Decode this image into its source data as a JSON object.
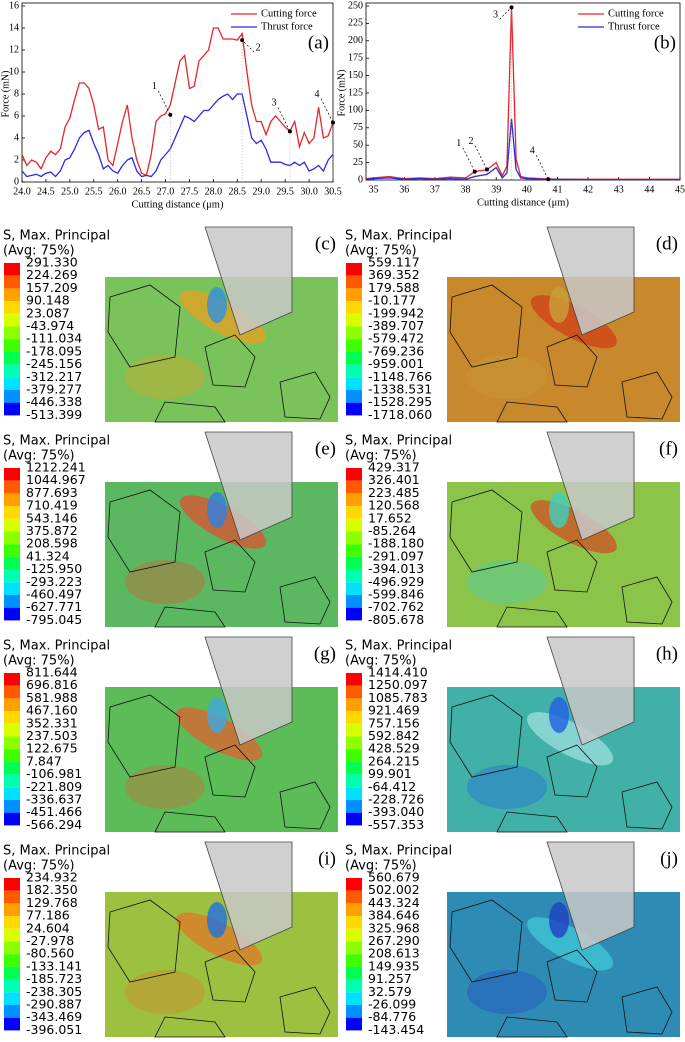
{
  "chart_data": [
    {
      "type": "line",
      "label": "(a)",
      "xlabel": "Cutting distance (μm)",
      "ylabel": "Force (mN)",
      "x": [
        24.0,
        24.1,
        24.2,
        24.3,
        24.4,
        24.5,
        24.6,
        24.7,
        24.8,
        24.9,
        25.0,
        25.1,
        25.2,
        25.3,
        25.4,
        25.5,
        25.6,
        25.7,
        25.8,
        25.9,
        26.0,
        26.1,
        26.2,
        26.3,
        26.4,
        26.5,
        26.6,
        26.7,
        26.8,
        26.9,
        27.0,
        27.1,
        27.2,
        27.3,
        27.4,
        27.5,
        27.6,
        27.7,
        27.8,
        27.9,
        28.0,
        28.1,
        28.2,
        28.3,
        28.4,
        28.5,
        28.6,
        28.7,
        28.8,
        28.9,
        29.0,
        29.1,
        29.2,
        29.3,
        29.4,
        29.5,
        29.6,
        29.7,
        29.8,
        29.9,
        30.0,
        30.1,
        30.2,
        30.3,
        30.4,
        30.5
      ],
      "series": [
        {
          "name": "Cutting force",
          "color": "#e8242a",
          "values": [
            2.5,
            1.5,
            2,
            1.8,
            1.2,
            2.2,
            2.8,
            2.5,
            3,
            5,
            5.8,
            7.5,
            9,
            9,
            8.5,
            7,
            4.8,
            5,
            2,
            1.5,
            3.5,
            5.5,
            7,
            4,
            2,
            0.8,
            0.6,
            2.5,
            5.5,
            6,
            6.2,
            7,
            9,
            11,
            11.5,
            8.5,
            8.7,
            11,
            11.5,
            12,
            14,
            14,
            13,
            13,
            13,
            12.9,
            13.5,
            10,
            7,
            5.5,
            5.5,
            4.3,
            5.5,
            6,
            5.5,
            5,
            4.6,
            5.5,
            3.2,
            4.5,
            3.5,
            4,
            6.8,
            4,
            4.2,
            5.4
          ]
        },
        {
          "name": "Thrust force",
          "color": "#2a2ae0",
          "values": [
            1,
            0.5,
            0.6,
            0.7,
            0.5,
            0.8,
            0.9,
            0.5,
            1,
            2,
            2.2,
            3,
            4,
            4.5,
            4.7,
            3.5,
            2.5,
            1.2,
            1.5,
            1,
            0.8,
            1.5,
            2,
            2.2,
            1,
            0.5,
            0.6,
            0.5,
            1,
            2,
            2.5,
            3,
            4,
            5,
            6,
            5.8,
            5.5,
            6,
            6.5,
            6.5,
            7,
            7.5,
            7.8,
            8,
            7.5,
            8,
            8,
            6,
            4,
            3.5,
            3.8,
            3,
            1.8,
            1.8,
            1.8,
            1.6,
            1.5,
            1.8,
            1.5,
            1.8,
            1,
            1.2,
            1.5,
            1,
            2,
            2.5
          ]
        }
      ],
      "annotations": [
        {
          "label": "1",
          "x": 27.1,
          "y": 6.1
        },
        {
          "label": "2",
          "x": 28.6,
          "y": 12.9
        },
        {
          "label": "3",
          "x": 29.6,
          "y": 4.6
        },
        {
          "label": "4",
          "x": 30.5,
          "y": 5.4
        }
      ],
      "xlim": [
        24.0,
        30.5
      ],
      "xticks": [
        {
          "value": 24.0,
          "label": "24.0"
        },
        24.5,
        {
          "value": 25.0,
          "label": "25.0"
        },
        25.5,
        {
          "value": 26.0,
          "label": "26.0"
        },
        26.5,
        {
          "value": 27.0,
          "label": "27.0"
        },
        27.5,
        {
          "value": 28.0,
          "label": "28.0"
        },
        28.5,
        {
          "value": 29.0,
          "label": "29.0"
        },
        29.5,
        {
          "value": 30.0,
          "label": "30.0"
        },
        30.5
      ],
      "ylim": [
        0,
        16
      ],
      "yticks": [
        0,
        2,
        4,
        6,
        8,
        10,
        12,
        14,
        16
      ],
      "legend": "upper right"
    },
    {
      "type": "line",
      "label": "(b)",
      "xlabel": "Cutting distance (μm)",
      "ylabel": "Force (mN)",
      "x": [
        34.75,
        35,
        35.5,
        36,
        36.5,
        37,
        37.5,
        38,
        38.3,
        38.7,
        39,
        39.2,
        39.35,
        39.5,
        39.65,
        39.8,
        40,
        40.5,
        41,
        42,
        43,
        44,
        45
      ],
      "series": [
        {
          "name": "Cutting force",
          "color": "#e8242a",
          "values": [
            2,
            3,
            5,
            2,
            3,
            2,
            4,
            3,
            12,
            15,
            25,
            6,
            20,
            248,
            30,
            5,
            3,
            2,
            1,
            1,
            1,
            1,
            1
          ]
        },
        {
          "name": "Thrust force",
          "color": "#2a2ae0",
          "values": [
            1,
            2,
            3,
            1,
            2,
            1,
            2,
            1,
            5,
            8,
            18,
            3,
            10,
            88,
            15,
            3,
            2,
            1,
            1,
            0.5,
            0.5,
            0.5,
            0.5
          ]
        }
      ],
      "annotations": [
        {
          "label": "1",
          "x": 38.3,
          "y": 12
        },
        {
          "label": "2",
          "x": 38.7,
          "y": 15
        },
        {
          "label": "3",
          "x": 39.5,
          "y": 248
        },
        {
          "label": "4",
          "x": 40.7,
          "y": 1
        }
      ],
      "xlim": [
        34.75,
        45
      ],
      "xticks": [
        35,
        36,
        37,
        38,
        39,
        40,
        41,
        42,
        43,
        44,
        45
      ],
      "ylim": [
        0,
        250
      ],
      "yticks": [
        0,
        25,
        50,
        75,
        100,
        125,
        150,
        175,
        200,
        225,
        250
      ],
      "legend": "upper right"
    }
  ],
  "panels": [
    {
      "label": "(c)",
      "title": "S, Max. Principal",
      "subtitle": "(Avg: 75%)",
      "levels": [
        "291.330",
        "224.269",
        "157.209",
        "90.148",
        "23.087",
        "-43.974",
        "-111.034",
        "-178.095",
        "-245.156",
        "-312.217",
        "-379.277",
        "-446.338",
        "-513.399"
      ]
    },
    {
      "label": "(d)",
      "title": "S, Max. Principal",
      "subtitle": "(Avg: 75%)",
      "levels": [
        "559.117",
        "369.352",
        "179.588",
        "-10.177",
        "-199.942",
        "-389.707",
        "-579.472",
        "-769.236",
        "-959.001",
        "-1148.766",
        "-1338.531",
        "-1528.295",
        "-1718.060"
      ]
    },
    {
      "label": "(e)",
      "title": "S, Max. Principal",
      "subtitle": "(Avg: 75%)",
      "levels": [
        "1212.241",
        "1044.967",
        "877.693",
        "710.419",
        "543.146",
        "375.872",
        "208.598",
        "41.324",
        "-125.950",
        "-293.223",
        "-460.497",
        "-627.771",
        "-795.045"
      ]
    },
    {
      "label": "(f)",
      "title": "S, Max. Principal",
      "subtitle": "(Avg: 75%)",
      "levels": [
        "429.317",
        "326.401",
        "223.485",
        "120.568",
        "17.652",
        "-85.264",
        "-188.180",
        "-291.097",
        "-394.013",
        "-496.929",
        "-599.846",
        "-702.762",
        "-805.678"
      ]
    },
    {
      "label": "(g)",
      "title": "S, Max. Principal",
      "subtitle": "(Avg: 75%)",
      "levels": [
        "811.644",
        "696.816",
        "581.988",
        "467.160",
        "352.331",
        "237.503",
        "122.675",
        "7.847",
        "-106.981",
        "-221.809",
        "-336.637",
        "-451.466",
        "-566.294"
      ]
    },
    {
      "label": "(h)",
      "title": "S, Max. Principal",
      "subtitle": "(Avg: 75%)",
      "levels": [
        "1414.410",
        "1250.097",
        "1085.783",
        "921.469",
        "757.156",
        "592.842",
        "428.529",
        "264.215",
        "99.901",
        "-64.412",
        "-228.726",
        "-393.040",
        "-557.353"
      ]
    },
    {
      "label": "(i)",
      "title": "S, Max. Principal",
      "subtitle": "(Avg: 75%)",
      "levels": [
        "234.932",
        "182.350",
        "129.768",
        "77.186",
        "24.604",
        "-27.978",
        "-80.560",
        "-133.141",
        "-185.723",
        "-238.305",
        "-290.887",
        "-343.469",
        "-396.051"
      ]
    },
    {
      "label": "(j)",
      "title": "S, Max. Principal",
      "subtitle": "(Avg: 75%)",
      "levels": [
        "560.679",
        "502.002",
        "443.324",
        "384.646",
        "325.968",
        "267.290",
        "208.613",
        "149.935",
        "91.257",
        "32.579",
        "-26.099",
        "-84.776",
        "-143.454"
      ]
    }
  ]
}
